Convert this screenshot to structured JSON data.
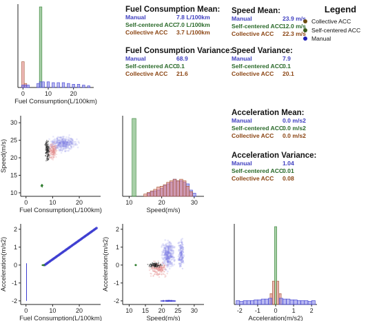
{
  "colors": {
    "manual": "#3b3bd0",
    "self_centered": "#2f7d2f",
    "collective": "#a0522d",
    "manual_fill": "#8080e6",
    "self_fill": "#5fa85f",
    "collective_fill": "#e08080",
    "blue_text": "#4040c0",
    "green_text": "#2a6a2a",
    "brown_text": "#8b4513"
  },
  "legend": {
    "title": "Legend",
    "items": [
      {
        "label": "Collective ACC",
        "color": "#6b4c10"
      },
      {
        "label": "Self-centered ACC",
        "color": "#3a5a1a"
      },
      {
        "label": "Manual",
        "color": "#1f1fb4"
      }
    ]
  },
  "stats": [
    {
      "id": "fuel-mean",
      "title": "Fuel Consumption Mean:",
      "rows": [
        {
          "label": "Manual",
          "value": "7.8 L/100km",
          "color": "#4040c0"
        },
        {
          "label": "Self-centered ACC",
          "value": "7.0 L/100km",
          "color": "#2a6a2a"
        },
        {
          "label": "Collective ACC",
          "value": "3.7 L/100km",
          "color": "#8b4513"
        }
      ]
    },
    {
      "id": "fuel-var",
      "title": "Fuel Consumption Variance:",
      "rows": [
        {
          "label": "Manual",
          "value": "68.9",
          "color": "#4040c0"
        },
        {
          "label": "Self-centered ACC",
          "value": "0.1",
          "color": "#2a6a2a"
        },
        {
          "label": "Collective ACC",
          "value": "21.6",
          "color": "#8b4513"
        }
      ]
    },
    {
      "id": "speed-mean",
      "title": "Speed Mean:",
      "rows": [
        {
          "label": "Manual",
          "value": "23.9 m/s",
          "color": "#4040c0"
        },
        {
          "label": "Self-centered ACC",
          "value": "12.0 m/s",
          "color": "#2a6a2a"
        },
        {
          "label": "Collective ACC",
          "value": "22.3 m/s",
          "color": "#8b4513"
        }
      ]
    },
    {
      "id": "speed-var",
      "title": "Speed Variance:",
      "rows": [
        {
          "label": "Manual",
          "value": "7.9",
          "color": "#4040c0"
        },
        {
          "label": "Self-centered ACC",
          "value": "0.1",
          "color": "#2a6a2a"
        },
        {
          "label": "Collective ACC",
          "value": "20.1",
          "color": "#8b4513"
        }
      ]
    },
    {
      "id": "accel-mean",
      "title": "Acceleration Mean:",
      "rows": [
        {
          "label": "Manual",
          "value": "0.0 m/s2",
          "color": "#4040c0"
        },
        {
          "label": "Self-centered ACC",
          "value": "0.0 m/s2",
          "color": "#2a6a2a"
        },
        {
          "label": "Collective ACC",
          "value": "0.0 m/s2",
          "color": "#8b4513"
        }
      ]
    },
    {
      "id": "accel-var",
      "title": "Acceleration Variance:",
      "rows": [
        {
          "label": "Manual",
          "value": "1.04",
          "color": "#4040c0"
        },
        {
          "label": "Self-centered ACC",
          "value": "0.01",
          "color": "#2a6a2a"
        },
        {
          "label": "Collective ACC",
          "value": "0.08",
          "color": "#8b4513"
        }
      ]
    }
  ],
  "chart_data": [
    {
      "type": "bar",
      "panel": "fuel-histogram",
      "xlabel": "Fuel Consumption(L/100km)",
      "ylabel": "",
      "xlim": [
        -2,
        28
      ],
      "xticks": [
        0,
        10,
        20
      ],
      "bins": [
        0,
        1,
        2,
        6,
        7,
        8,
        10,
        12,
        14,
        16,
        18,
        20,
        22,
        24,
        26
      ],
      "bin_width": 1,
      "series": [
        {
          "name": "Collective ACC",
          "values": [
            0.32,
            0.05,
            0.0,
            0.0,
            0.0,
            0.0,
            0.0,
            0.0,
            0.0,
            0.0,
            0.0,
            0.0,
            0.0,
            0.0,
            0.0
          ]
        },
        {
          "name": "Self-centered ACC",
          "values": [
            0.0,
            0.0,
            0.0,
            0.0,
            1.0,
            0.0,
            0.0,
            0.0,
            0.0,
            0.0,
            0.0,
            0.0,
            0.0,
            0.0,
            0.0
          ]
        },
        {
          "name": "Manual",
          "values": [
            0.03,
            0.03,
            0.03,
            0.05,
            0.07,
            0.07,
            0.07,
            0.06,
            0.06,
            0.06,
            0.05,
            0.04,
            0.04,
            0.03,
            0.02
          ]
        }
      ]
    },
    {
      "type": "scatter",
      "panel": "speed-vs-fuel",
      "xlabel": "Fuel Consumption(L/100km)",
      "ylabel": "Speed(m/s)",
      "xlim": [
        -2,
        28
      ],
      "ylim": [
        9,
        32
      ],
      "xticks": [
        0,
        10,
        20
      ],
      "yticks": [
        10,
        15,
        20,
        25,
        30
      ]
    },
    {
      "type": "bar",
      "panel": "speed-histogram",
      "xlabel": "Speed(m/s)",
      "ylabel": "",
      "xlim": [
        8,
        33
      ],
      "xticks": [
        10,
        20,
        30
      ],
      "series": [
        {
          "name": "Self-centered ACC",
          "bins": [
            11.5
          ],
          "bin_width": 1.2,
          "values": [
            1.0
          ]
        },
        {
          "name": "Manual",
          "bins": [
            16,
            17,
            18,
            19,
            20,
            21,
            22,
            23,
            24,
            25,
            26,
            27,
            28,
            29,
            30
          ],
          "bin_width": 1,
          "values": [
            0.04,
            0.06,
            0.07,
            0.08,
            0.1,
            0.14,
            0.16,
            0.18,
            0.22,
            0.2,
            0.2,
            0.18,
            0.16,
            0.08,
            0.04
          ]
        },
        {
          "name": "Collective ACC",
          "bins": [
            15,
            16,
            17,
            18,
            19,
            20,
            21,
            22,
            23,
            24,
            25,
            26,
            27,
            28,
            29
          ],
          "bin_width": 1,
          "values": [
            0.03,
            0.05,
            0.07,
            0.09,
            0.12,
            0.13,
            0.15,
            0.18,
            0.2,
            0.22,
            0.2,
            0.22,
            0.2,
            0.13,
            0.06
          ]
        }
      ]
    },
    {
      "type": "scatter",
      "panel": "accel-vs-fuel",
      "xlabel": "Fuel Consumption(L/100km)",
      "ylabel": "Acceleration(m/s2)",
      "xlim": [
        -2,
        28
      ],
      "ylim": [
        -2.2,
        2.3
      ],
      "xticks": [
        0,
        10,
        20
      ],
      "yticks": [
        -2,
        -1,
        0,
        1,
        2
      ]
    },
    {
      "type": "scatter",
      "panel": "accel-vs-speed",
      "xlabel": "Speed(m/s)",
      "ylabel": "Acceleration(m/s2)",
      "xlim": [
        8,
        33
      ],
      "ylim": [
        -2.2,
        2.3
      ],
      "xticks": [
        10,
        15,
        20,
        25,
        30
      ],
      "yticks": [
        -2,
        -1,
        0,
        1,
        2
      ]
    },
    {
      "type": "bar",
      "panel": "accel-histogram",
      "xlabel": "Acceleration(m/s2)",
      "ylabel": "",
      "xlim": [
        -2.3,
        2.3
      ],
      "xticks": [
        -2,
        -1,
        0,
        1,
        2
      ],
      "series": [
        {
          "name": "Self-centered ACC",
          "bins": [
            0
          ],
          "bin_width": 0.12,
          "values": [
            1.0
          ]
        },
        {
          "name": "Collective ACC",
          "bins": [
            -0.25,
            -0.12,
            0.12,
            0.25
          ],
          "bin_width": 0.12,
          "values": [
            0.14,
            0.3,
            0.3,
            0.14
          ]
        },
        {
          "name": "Manual",
          "bins": [
            -2.1,
            -1.9,
            -1.7,
            -1.5,
            -1.3,
            -1.1,
            -0.9,
            -0.7,
            -0.5,
            -0.3,
            0.3,
            0.5,
            0.7,
            0.9,
            1.1,
            1.3,
            1.5,
            1.7,
            1.9,
            2.1
          ],
          "bin_width": 0.2,
          "values": [
            0.05,
            0.04,
            0.05,
            0.05,
            0.05,
            0.06,
            0.06,
            0.07,
            0.07,
            0.08,
            0.08,
            0.07,
            0.07,
            0.06,
            0.06,
            0.05,
            0.05,
            0.05,
            0.04,
            0.05
          ]
        }
      ]
    }
  ]
}
